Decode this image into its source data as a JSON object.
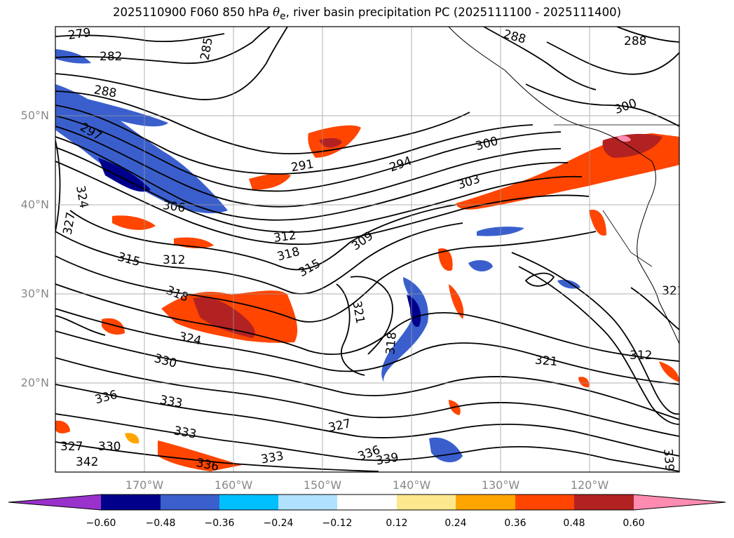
{
  "title": {
    "prefix": "2025110900 F060 850 hPa",
    "symbol": "θ",
    "sub": "e",
    "suffix": ", river basin precipitation PC (2025111100 - 2025111400)"
  },
  "map": {
    "lat_labels": [
      "50°N",
      "40°N",
      "30°N",
      "20°N"
    ],
    "lon_labels": [
      "170°W",
      "160°W",
      "150°W",
      "140°W",
      "130°W",
      "120°W"
    ],
    "contour_labels": [
      "279",
      "282",
      "285",
      "288",
      "291",
      "294",
      "297",
      "300",
      "303",
      "306",
      "309",
      "312",
      "315",
      "318",
      "321",
      "324",
      "327",
      "330",
      "333",
      "336",
      "339",
      "342"
    ]
  },
  "colorbar": {
    "levels": [
      "−0.60",
      "−0.48",
      "−0.36",
      "−0.24",
      "−0.12",
      "0.12",
      "0.24",
      "0.36",
      "0.48",
      "0.60"
    ],
    "colors": [
      "#9932cc",
      "#00008b",
      "#3a5fcd",
      "#00bfff",
      "#b0e2ff",
      "#ffffff",
      "#fce98e",
      "#ffa500",
      "#ff4500",
      "#b22222",
      "#ff8cb0"
    ]
  }
}
